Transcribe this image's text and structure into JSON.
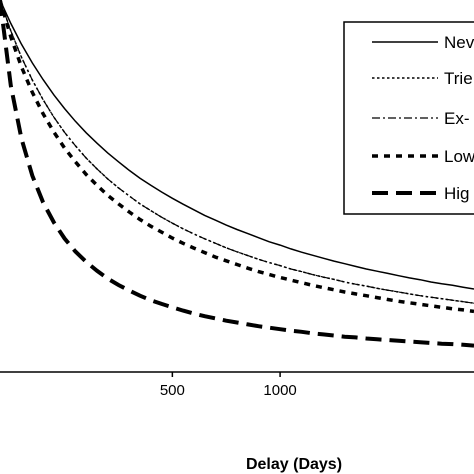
{
  "chart_data": {
    "type": "line",
    "xlabel": "Delay (Days)",
    "ylabel": "",
    "title": "",
    "xlim": [
      -300,
      1900
    ],
    "ylim": [
      0,
      1
    ],
    "xticks": [
      500,
      1000
    ],
    "x": [
      -300,
      -250,
      -200,
      -150,
      -100,
      -50,
      0,
      50,
      100,
      150,
      200,
      250,
      300,
      350,
      400,
      450,
      500,
      550,
      600,
      650,
      700,
      750,
      800,
      850,
      900,
      950,
      1000,
      1050,
      1100,
      1150,
      1200,
      1250,
      1300,
      1350,
      1400,
      1450,
      1500,
      1550,
      1600,
      1650,
      1700,
      1750,
      1800,
      1850,
      1900
    ],
    "legend_position": "top-right",
    "series": [
      {
        "name": "Nev",
        "style": "solid",
        "color": "#000000",
        "values": [
          1.0,
          0.937,
          0.881,
          0.831,
          0.786,
          0.745,
          0.708,
          0.674,
          0.643,
          0.615,
          0.589,
          0.565,
          0.542,
          0.521,
          0.502,
          0.484,
          0.467,
          0.451,
          0.436,
          0.421,
          0.408,
          0.395,
          0.383,
          0.372,
          0.361,
          0.35,
          0.341,
          0.331,
          0.322,
          0.314,
          0.306,
          0.298,
          0.291,
          0.284,
          0.277,
          0.271,
          0.265,
          0.259,
          0.253,
          0.248,
          0.242,
          0.237,
          0.233,
          0.228,
          0.223
        ]
      },
      {
        "name": "Trie",
        "style": "dotted",
        "color": "#000000",
        "values": [
          1.0,
          0.917,
          0.846,
          0.785,
          0.732,
          0.685,
          0.644,
          0.608,
          0.575,
          0.546,
          0.519,
          0.495,
          0.473,
          0.452,
          0.434,
          0.416,
          0.4,
          0.385,
          0.371,
          0.358,
          0.346,
          0.334,
          0.323,
          0.313,
          0.303,
          0.294,
          0.286,
          0.277,
          0.27,
          0.262,
          0.255,
          0.249,
          0.242,
          0.236,
          0.231,
          0.225,
          0.22,
          0.215,
          0.21,
          0.205,
          0.201,
          0.197,
          0.193,
          0.189,
          0.185
        ]
      },
      {
        "name": "Ex-",
        "style": "dash-dot",
        "color": "#000000",
        "values": [
          1.0,
          0.917,
          0.846,
          0.785,
          0.732,
          0.685,
          0.644,
          0.608,
          0.575,
          0.546,
          0.519,
          0.495,
          0.473,
          0.452,
          0.434,
          0.416,
          0.4,
          0.385,
          0.371,
          0.358,
          0.346,
          0.334,
          0.323,
          0.313,
          0.303,
          0.294,
          0.286,
          0.277,
          0.27,
          0.262,
          0.255,
          0.249,
          0.242,
          0.236,
          0.231,
          0.225,
          0.22,
          0.215,
          0.21,
          0.205,
          0.201,
          0.197,
          0.193,
          0.189,
          0.185
        ]
      },
      {
        "name": "Low",
        "style": "dashed",
        "color": "#000000",
        "values": [
          1.0,
          0.901,
          0.82,
          0.752,
          0.694,
          0.645,
          0.602,
          0.565,
          0.531,
          0.502,
          0.475,
          0.452,
          0.43,
          0.41,
          0.392,
          0.376,
          0.36,
          0.346,
          0.333,
          0.321,
          0.309,
          0.299,
          0.289,
          0.279,
          0.27,
          0.262,
          0.254,
          0.247,
          0.24,
          0.233,
          0.227,
          0.221,
          0.215,
          0.21,
          0.205,
          0.2,
          0.195,
          0.19,
          0.186,
          0.182,
          0.178,
          0.174,
          0.17,
          0.167,
          0.163
        ]
      },
      {
        "name": "Hig",
        "style": "long-dash",
        "color": "#000000",
        "values": [
          1.0,
          0.77,
          0.627,
          0.528,
          0.456,
          0.402,
          0.359,
          0.324,
          0.296,
          0.272,
          0.251,
          0.234,
          0.219,
          0.205,
          0.193,
          0.183,
          0.174,
          0.165,
          0.157,
          0.15,
          0.144,
          0.138,
          0.133,
          0.128,
          0.123,
          0.119,
          0.115,
          0.111,
          0.108,
          0.104,
          0.101,
          0.098,
          0.095,
          0.093,
          0.09,
          0.088,
          0.086,
          0.084,
          0.082,
          0.08,
          0.078,
          0.076,
          0.075,
          0.073,
          0.071
        ]
      }
    ]
  }
}
